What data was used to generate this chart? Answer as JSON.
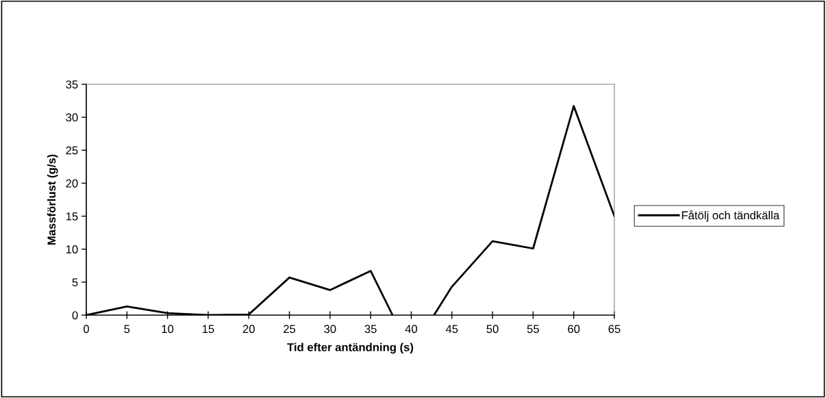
{
  "chart_data": {
    "type": "line",
    "xlabel": "Tid efter antändning (s)",
    "ylabel": "Massförlust (g/s)",
    "series": [
      {
        "name": "Fåtölj och tändkälla",
        "color": "#000000",
        "x": [
          0,
          5,
          10,
          15,
          20,
          25,
          30,
          35,
          37.7,
          40,
          42.8,
          45,
          50,
          55,
          60,
          65
        ],
        "values": [
          0,
          1.3,
          0.3,
          0,
          0.1,
          5.7,
          3.8,
          6.7,
          0,
          null,
          0,
          4.3,
          11.2,
          10.1,
          31.7,
          15.0
        ]
      }
    ],
    "xlim": [
      0,
      65
    ],
    "xticks": [
      0,
      5,
      10,
      15,
      20,
      25,
      30,
      35,
      40,
      45,
      50,
      55,
      60,
      65
    ],
    "ylim": [
      0,
      35
    ],
    "yticks": [
      0,
      5,
      10,
      15,
      20,
      25,
      30,
      35
    ],
    "grid": false,
    "legend": "right",
    "marker": "none",
    "line_style": "solid"
  }
}
